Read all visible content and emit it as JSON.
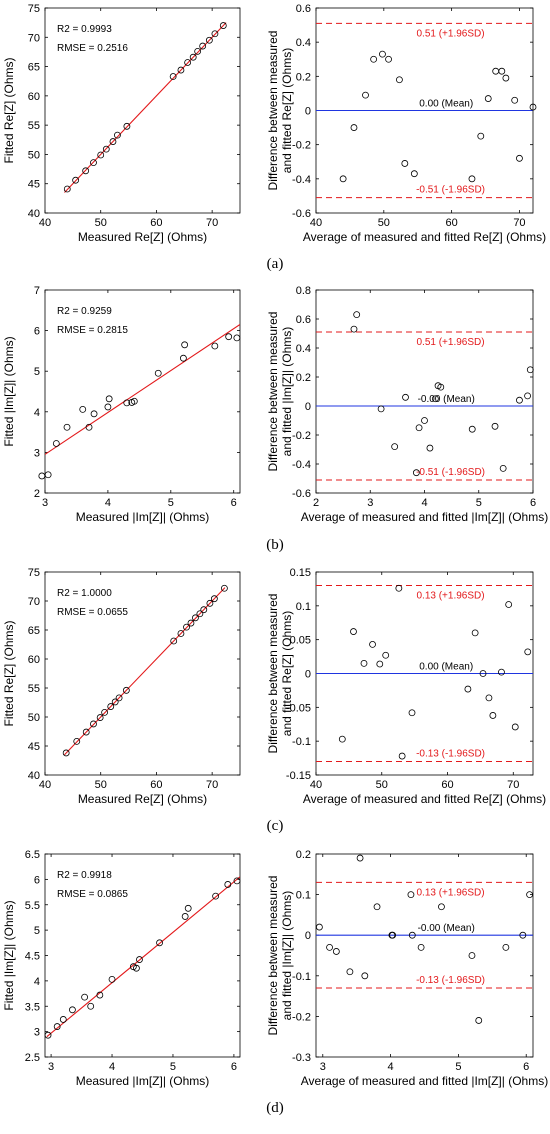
{
  "figure": {
    "panel_labels": [
      "(a)",
      "(b)",
      "(c)",
      "(d)"
    ]
  },
  "chart_data": [
    {
      "type": "scatter",
      "id": "a-left",
      "xlabel": "Measured Re[Z] (Ohms)",
      "ylabel": "Fitted Re[Z] (Ohms)",
      "xlim": [
        40,
        75
      ],
      "ylim": [
        40,
        75
      ],
      "xticks": [
        40,
        50,
        60,
        70
      ],
      "yticks": [
        40,
        45,
        50,
        55,
        60,
        65,
        70,
        75
      ],
      "annotations": [
        "R2 = 0.9993",
        "RMSE = 0.2516"
      ],
      "fit_line": {
        "x": [
          43.5,
          72.5
        ],
        "y": [
          43.5,
          72.5
        ]
      },
      "x": [
        44,
        45.5,
        47.3,
        48.7,
        50,
        51,
        52.2,
        53,
        54.7,
        63,
        64.4,
        65.6,
        66.6,
        67.4,
        68.3,
        69.5,
        70.5,
        72
      ],
      "y": [
        44.1,
        45.6,
        47.2,
        48.6,
        49.9,
        50.9,
        52.2,
        53.3,
        54.8,
        63.3,
        64.4,
        65.7,
        66.6,
        67.6,
        68.5,
        69.5,
        70.6,
        72.0
      ]
    },
    {
      "type": "scatter",
      "id": "a-right",
      "xlabel": "Average of measured and fitted Re[Z] (Ohms)",
      "ylabel": "Difference between measured and fitted Re[Z] (Ohms)",
      "xlim": [
        40,
        72
      ],
      "ylim": [
        -0.6,
        0.6
      ],
      "xticks": [
        40,
        50,
        60,
        70
      ],
      "yticks": [
        -0.6,
        -0.4,
        -0.2,
        0,
        0.2,
        0.4,
        0.6
      ],
      "mean_line": {
        "y": 0,
        "label": "0.00 (Mean)"
      },
      "upper_limit": {
        "y": 0.51,
        "label": "0.51 (+1.96SD)"
      },
      "lower_limit": {
        "y": -0.51,
        "label": "-0.51 (-1.96SD)"
      },
      "x": [
        44,
        45.6,
        47.3,
        48.5,
        49.8,
        50.7,
        52.3,
        53.1,
        54.5,
        63,
        64.3,
        65.4,
        66.5,
        67.4,
        68,
        69.3,
        70,
        72
      ],
      "y": [
        -0.4,
        -0.1,
        0.09,
        0.3,
        0.33,
        0.3,
        0.18,
        -0.31,
        -0.37,
        -0.4,
        -0.15,
        0.07,
        0.23,
        0.23,
        0.19,
        0.06,
        -0.28,
        0.02
      ]
    },
    {
      "type": "scatter",
      "id": "b-left",
      "xlabel": "Measured |Im[Z]| (Ohms)",
      "ylabel": "Fitted |Im[Z]| (Ohms)",
      "xlim": [
        3,
        6.1
      ],
      "ylim": [
        2,
        7
      ],
      "xticks": [
        3,
        4,
        5,
        6
      ],
      "yticks": [
        2,
        3,
        4,
        5,
        6,
        7
      ],
      "annotations": [
        "R2 = 0.9259",
        "RMSE = 0.2815"
      ],
      "fit_line": {
        "x": [
          2.95,
          6.1
        ],
        "y": [
          2.9,
          6.15
        ]
      },
      "x": [
        2.95,
        3.05,
        3.18,
        3.35,
        3.6,
        3.7,
        3.78,
        4.0,
        4.02,
        4.3,
        4.38,
        4.42,
        4.8,
        5.2,
        5.22,
        5.7,
        5.92,
        6.05
      ],
      "y": [
        2.42,
        2.45,
        3.22,
        3.62,
        4.06,
        3.62,
        3.95,
        4.12,
        4.32,
        4.22,
        4.23,
        4.26,
        4.95,
        5.32,
        5.65,
        5.62,
        5.85,
        5.82
      ]
    },
    {
      "type": "scatter",
      "id": "b-right",
      "xlabel": "Average of measured and fitted |Im[Z]| (Ohms)",
      "ylabel": "Difference between measured and fitted |Im[Z]| (Ohms)",
      "xlim": [
        2,
        6
      ],
      "ylim": [
        -0.6,
        0.8
      ],
      "xticks": [
        2,
        3,
        4,
        5,
        6
      ],
      "yticks": [
        -0.6,
        -0.4,
        -0.2,
        0,
        0.2,
        0.4,
        0.6,
        0.8
      ],
      "mean_line": {
        "y": 0,
        "label": "-0.00 (Mean)"
      },
      "upper_limit": {
        "y": 0.51,
        "label": "0.51 (+1.96SD)"
      },
      "lower_limit": {
        "y": -0.51,
        "label": "-0.51 (-1.96SD)"
      },
      "x": [
        2.7,
        2.75,
        3.2,
        3.45,
        3.65,
        3.85,
        3.9,
        4.0,
        4.1,
        4.2,
        4.25,
        4.3,
        4.88,
        5.3,
        5.45,
        5.75,
        5.9,
        5.95
      ],
      "y": [
        0.53,
        0.63,
        -0.02,
        -0.28,
        0.06,
        -0.46,
        -0.15,
        -0.1,
        -0.29,
        0.05,
        0.14,
        0.13,
        -0.16,
        -0.14,
        -0.43,
        0.04,
        0.07,
        0.25
      ]
    },
    {
      "type": "scatter",
      "id": "c-left",
      "xlabel": "Measured Re[Z] (Ohms)",
      "ylabel": "Fitted Re[Z] (Ohms)",
      "xlim": [
        40,
        75
      ],
      "ylim": [
        40,
        75
      ],
      "xticks": [
        40,
        50,
        60,
        70
      ],
      "yticks": [
        40,
        45,
        50,
        55,
        60,
        65,
        70,
        75
      ],
      "annotations": [
        "R2 = 1.0000",
        "RMSE = 0.0655"
      ],
      "fit_line": {
        "x": [
          43.5,
          72.3
        ],
        "y": [
          43.5,
          72.3
        ]
      },
      "x": [
        43.8,
        45.7,
        47.4,
        48.7,
        49.9,
        50.7,
        51.8,
        52.6,
        53.3,
        54.6,
        63.1,
        64.4,
        65.4,
        66.2,
        67.0,
        67.8,
        68.5,
        69.6,
        70.4,
        72.2
      ],
      "y": [
        43.8,
        45.8,
        47.4,
        48.8,
        49.9,
        50.8,
        51.8,
        52.6,
        53.3,
        54.6,
        63.1,
        64.4,
        65.5,
        66.2,
        67.1,
        67.8,
        68.5,
        69.6,
        70.4,
        72.2
      ]
    },
    {
      "type": "scatter",
      "id": "c-right",
      "xlabel": "Average of measured and fitted Re[Z] (Ohms)",
      "ylabel": "Difference between measured and fitted Re[Z] (Ohms)",
      "xlim": [
        40,
        73
      ],
      "ylim": [
        -0.15,
        0.15
      ],
      "xticks": [
        40,
        50,
        60,
        70
      ],
      "yticks": [
        -0.15,
        -0.1,
        -0.05,
        0,
        0.05,
        0.1,
        0.15
      ],
      "mean_line": {
        "y": 0,
        "label": "0.00 (Mean)"
      },
      "upper_limit": {
        "y": 0.13,
        "label": "0.13 (+1.96SD)"
      },
      "lower_limit": {
        "y": -0.13,
        "label": "-0.13 (-1.96SD)"
      },
      "x": [
        44,
        45.7,
        47.3,
        48.6,
        49.7,
        50.6,
        52.6,
        53.1,
        54.6,
        63.1,
        64.2,
        65.4,
        66.3,
        66.9,
        68.2,
        69.3,
        70.3,
        72.2
      ],
      "y": [
        -0.097,
        0.062,
        0.015,
        0.043,
        0.014,
        0.027,
        0.126,
        -0.122,
        -0.058,
        -0.023,
        0.06,
        0.0,
        -0.036,
        -0.062,
        0.002,
        0.102,
        -0.079,
        0.032
      ]
    },
    {
      "type": "scatter",
      "id": "d-left",
      "xlabel": "Measured |Im[Z]| (Ohms)",
      "ylabel": "Fitted |Im[Z]| (Ohms)",
      "xlim": [
        2.9,
        6.1
      ],
      "ylim": [
        2.5,
        6.5
      ],
      "xticks": [
        3,
        4,
        5,
        6
      ],
      "yticks": [
        2.5,
        3,
        3.5,
        4,
        4.5,
        5,
        5.5,
        6,
        6.5
      ],
      "annotations": [
        "R2 = 0.9918",
        "RMSE = 0.0865"
      ],
      "fit_line": {
        "x": [
          2.93,
          6.1
        ],
        "y": [
          2.9,
          6.05
        ]
      },
      "x": [
        2.95,
        3.1,
        3.2,
        3.35,
        3.55,
        3.65,
        3.8,
        4.0,
        4.35,
        4.4,
        4.45,
        4.78,
        5.2,
        5.25,
        5.7,
        5.9,
        6.05
      ],
      "y": [
        2.93,
        3.1,
        3.24,
        3.43,
        3.68,
        3.5,
        3.72,
        4.03,
        4.28,
        4.25,
        4.42,
        4.75,
        5.27,
        5.43,
        5.67,
        5.9,
        5.97
      ]
    },
    {
      "type": "scatter",
      "id": "d-right",
      "xlabel": "Average of measured and fitted |Im[Z]| (Ohms)",
      "ylabel": "Difference between measured and fitted |Im[Z]| (Ohms)",
      "xlim": [
        2.9,
        6.1
      ],
      "ylim": [
        -0.3,
        0.2
      ],
      "xticks": [
        3,
        4,
        5,
        6
      ],
      "yticks": [
        -0.3,
        -0.2,
        -0.1,
        0,
        0.1,
        0.2
      ],
      "mean_line": {
        "y": 0,
        "label": "-0.00 (Mean)"
      },
      "upper_limit": {
        "y": 0.13,
        "label": "0.13 (+1.96SD)"
      },
      "lower_limit": {
        "y": -0.13,
        "label": "-0.13 (-1.96SD)"
      },
      "x": [
        2.95,
        3.1,
        3.2,
        3.4,
        3.55,
        3.62,
        3.8,
        4.02,
        4.03,
        4.3,
        4.32,
        4.45,
        4.75,
        5.2,
        5.3,
        5.7,
        5.95,
        6.05
      ],
      "y": [
        0.02,
        -0.03,
        -0.04,
        -0.09,
        0.19,
        -0.1,
        0.07,
        0.0,
        0.0,
        0.1,
        0.0,
        -0.03,
        0.07,
        -0.05,
        -0.21,
        -0.03,
        0.0,
        0.1
      ]
    }
  ]
}
